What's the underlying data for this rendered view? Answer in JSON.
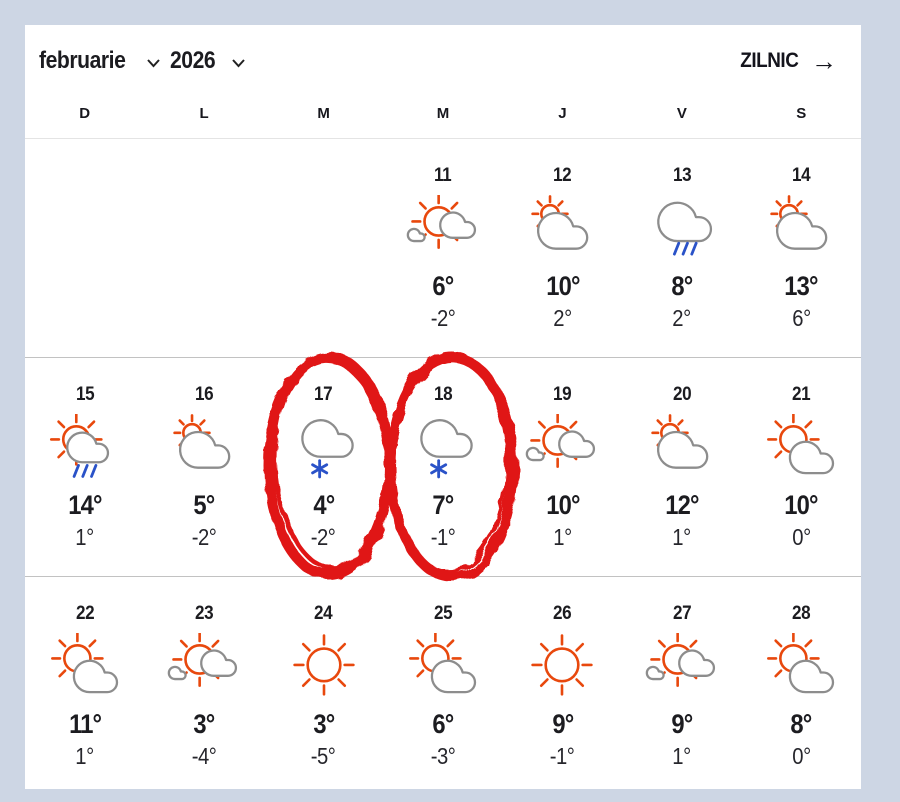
{
  "page": {
    "background_color": "#cdd6e4",
    "panel_color": "#ffffff"
  },
  "header": {
    "month_label": "februarie",
    "year_label": "2026",
    "month_dropdown_icon": "chevron-down",
    "year_dropdown_icon": "chevron-down",
    "daily_link_label": "ZILNIC",
    "daily_link_arrow": "→"
  },
  "calendar": {
    "weekday_headers": [
      "D",
      "L",
      "M",
      "M",
      "J",
      "V",
      "S"
    ],
    "weeks": [
      {
        "days": [
          null,
          null,
          null,
          {
            "date": "11",
            "icon": "mostly-sunny",
            "high": "6°",
            "low": "-2°"
          },
          {
            "date": "12",
            "icon": "partly-cloudy",
            "high": "10°",
            "low": "2°"
          },
          {
            "date": "13",
            "icon": "rain",
            "high": "8°",
            "low": "2°"
          },
          {
            "date": "14",
            "icon": "partly-cloudy",
            "high": "13°",
            "low": "6°"
          }
        ]
      },
      {
        "days": [
          {
            "date": "15",
            "icon": "sun-rain",
            "high": "14°",
            "low": "1°"
          },
          {
            "date": "16",
            "icon": "partly-cloudy",
            "high": "5°",
            "low": "-2°"
          },
          {
            "date": "17",
            "icon": "snow",
            "high": "4°",
            "low": "-2°"
          },
          {
            "date": "18",
            "icon": "snow",
            "high": "7°",
            "low": "-1°"
          },
          {
            "date": "19",
            "icon": "mostly-sunny",
            "high": "10°",
            "low": "1°"
          },
          {
            "date": "20",
            "icon": "partly-cloudy",
            "high": "12°",
            "low": "1°"
          },
          {
            "date": "21",
            "icon": "sun-cloud",
            "high": "10°",
            "low": "0°"
          }
        ]
      },
      {
        "days": [
          {
            "date": "22",
            "icon": "sun-cloud",
            "high": "11°",
            "low": "1°"
          },
          {
            "date": "23",
            "icon": "mostly-sunny",
            "high": "3°",
            "low": "-4°"
          },
          {
            "date": "24",
            "icon": "sunny",
            "high": "3°",
            "low": "-5°"
          },
          {
            "date": "25",
            "icon": "sun-cloud",
            "high": "6°",
            "low": "-3°"
          },
          {
            "date": "26",
            "icon": "sunny",
            "high": "9°",
            "low": "-1°"
          },
          {
            "date": "27",
            "icon": "mostly-sunny",
            "high": "9°",
            "low": "1°"
          },
          {
            "date": "28",
            "icon": "sun-cloud",
            "high": "8°",
            "low": "0°"
          }
        ]
      }
    ]
  },
  "annotation": {
    "type": "hand-drawn-marker-circles",
    "circled_days": [
      "17",
      "18"
    ],
    "color": "#e01414"
  },
  "colors": {
    "sun": "#e8480d",
    "cloud": "#8d8d8d",
    "precip": "#2a52c8",
    "text": "#1c1c20"
  }
}
